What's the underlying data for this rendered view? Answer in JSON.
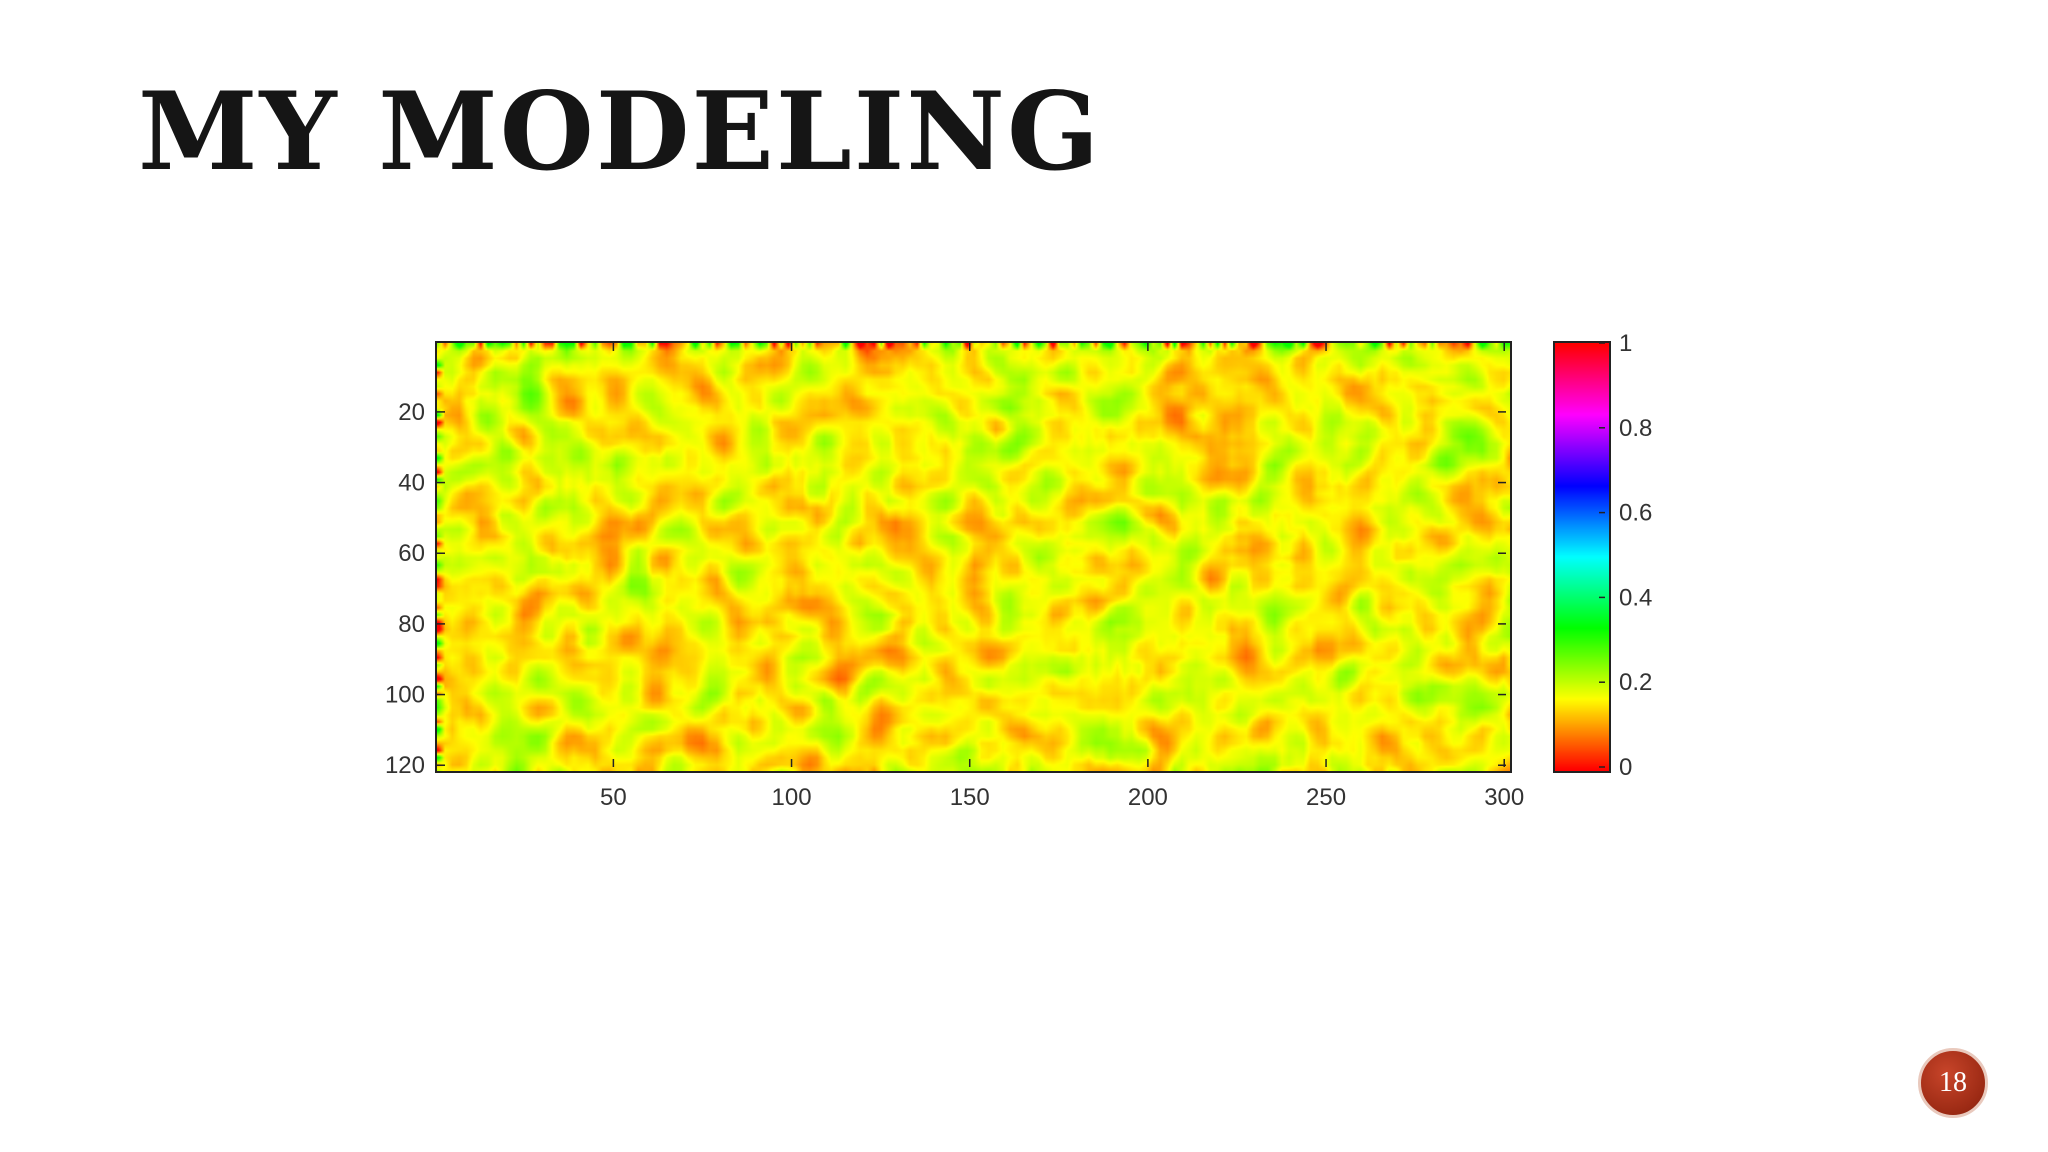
{
  "slide": {
    "title": "MY MODELING",
    "page_number": "18"
  },
  "chart_data": {
    "type": "heatmap",
    "title": "",
    "xlabel": "",
    "ylabel": "",
    "xlim": [
      1,
      300
    ],
    "ylim": [
      1,
      120
    ],
    "y_reversed": true,
    "x_ticks": [
      50,
      100,
      150,
      200,
      250,
      300
    ],
    "y_ticks": [
      20,
      40,
      60,
      80,
      100,
      120
    ],
    "colormap": "hsv",
    "colorbar": {
      "range": [
        0,
        1
      ],
      "ticks": [
        0,
        0.2,
        0.4,
        0.6,
        0.8,
        1
      ],
      "tick_labels": [
        "0",
        "0.2",
        "0.4",
        "0.6",
        "0.8",
        "1"
      ],
      "placement": "right"
    },
    "value_range_observed": [
      0.0,
      0.33
    ],
    "description_of_values": "random spatial field, values mostly between 0 and 0.3 (red–yellow–green)"
  }
}
